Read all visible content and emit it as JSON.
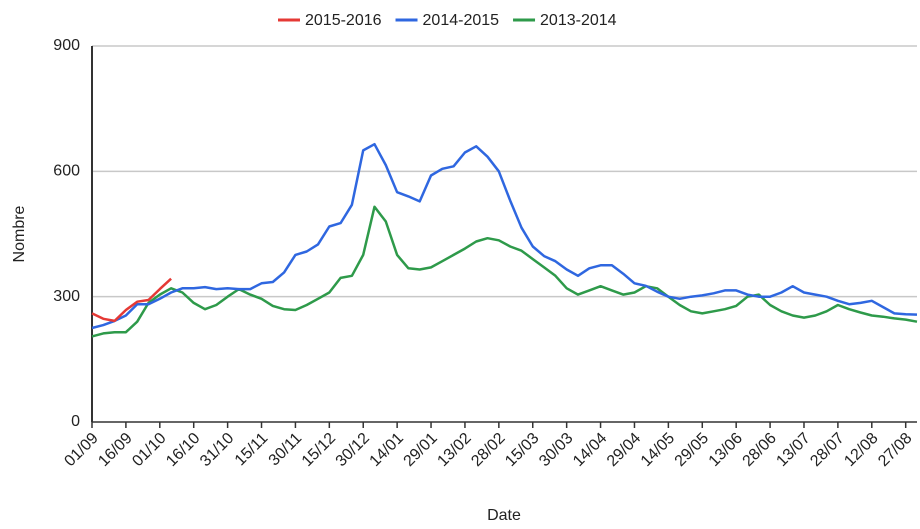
{
  "chart_data": {
    "type": "line",
    "xlabel": "Date",
    "ylabel": "Nombre",
    "categories": [
      "01/09",
      null,
      null,
      "16/09",
      null,
      null,
      "01/10",
      null,
      null,
      "16/10",
      null,
      null,
      "31/10",
      null,
      null,
      "15/11",
      null,
      null,
      "30/11",
      null,
      null,
      "15/12",
      null,
      null,
      "30/12",
      null,
      null,
      "14/01",
      null,
      null,
      "29/01",
      null,
      null,
      "13/02",
      null,
      null,
      "28/02",
      null,
      null,
      "15/03",
      null,
      null,
      "30/03",
      null,
      null,
      "14/04",
      null,
      null,
      "29/04",
      null,
      null,
      "14/05",
      null,
      null,
      "29/05",
      null,
      null,
      "13/06",
      null,
      null,
      "28/06",
      null,
      null,
      "13/07",
      null,
      null,
      "28/07",
      null,
      null,
      "12/08",
      null,
      null,
      "27/08",
      null
    ],
    "series": [
      {
        "name": "2015-2016",
        "color": "#e53935",
        "values": [
          260,
          247,
          242,
          268,
          288,
          292,
          318,
          343,
          null,
          null,
          null,
          null,
          null,
          null,
          null,
          null,
          null,
          null,
          null,
          null,
          null,
          null,
          null,
          null,
          null,
          null,
          null,
          null,
          null,
          null,
          null,
          null,
          null,
          null,
          null,
          null,
          null,
          null,
          null,
          null,
          null,
          null,
          null,
          null,
          null,
          null,
          null,
          null,
          null,
          null,
          null,
          null,
          null,
          null,
          null,
          null,
          null,
          null,
          null,
          null,
          null,
          null,
          null,
          null,
          null,
          null,
          null,
          null,
          null,
          null,
          null,
          null,
          null,
          null
        ]
      },
      {
        "name": "2014-2015",
        "color": "#2f67e0",
        "values": [
          225,
          232,
          242,
          255,
          282,
          282,
          295,
          310,
          320,
          320,
          323,
          318,
          320,
          318,
          318,
          332,
          335,
          358,
          400,
          408,
          425,
          468,
          476,
          520,
          650,
          665,
          615,
          550,
          540,
          528,
          590,
          606,
          612,
          645,
          660,
          635,
          600,
          530,
          465,
          420,
          397,
          385,
          365,
          350,
          368,
          375,
          375,
          355,
          332,
          326,
          312,
          300,
          295,
          300,
          303,
          308,
          315,
          315,
          305,
          300,
          300,
          310,
          325,
          310,
          305,
          300,
          290,
          282,
          285,
          290,
          275,
          260,
          258,
          257
        ]
      },
      {
        "name": "2013-2014",
        "color": "#2e9a4a",
        "values": [
          205,
          212,
          215,
          215,
          240,
          285,
          305,
          320,
          310,
          285,
          270,
          280,
          300,
          318,
          305,
          295,
          278,
          270,
          268,
          280,
          295,
          310,
          345,
          350,
          400,
          515,
          480,
          400,
          368,
          365,
          370,
          385,
          400,
          415,
          432,
          440,
          435,
          420,
          410,
          390,
          370,
          350,
          320,
          305,
          315,
          325,
          315,
          305,
          310,
          325,
          320,
          300,
          280,
          265,
          260,
          265,
          270,
          278,
          300,
          305,
          280,
          265,
          255,
          250,
          255,
          265,
          280,
          270,
          262,
          255,
          252,
          248,
          245,
          240
        ]
      }
    ],
    "ylim": [
      0,
      900
    ],
    "yticks": [
      0,
      300,
      600,
      900
    ],
    "grid": true,
    "legend": "top"
  }
}
